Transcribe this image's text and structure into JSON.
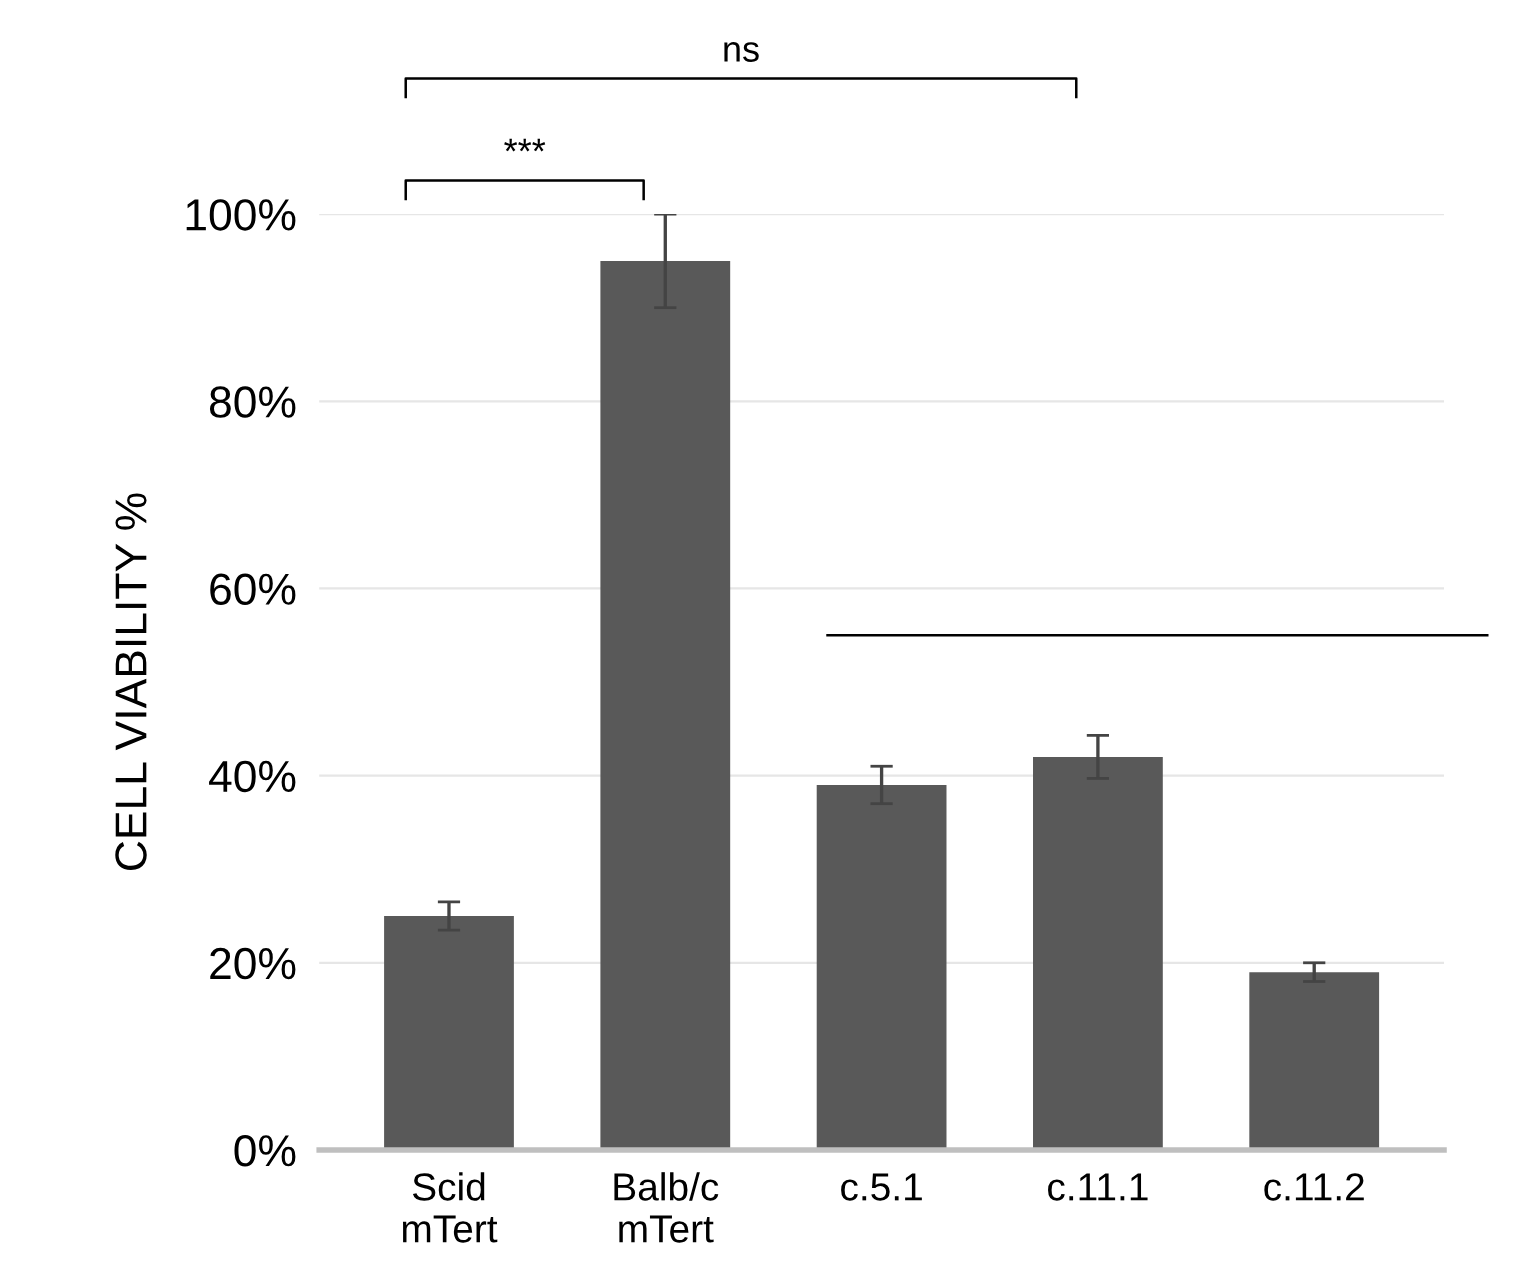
{
  "chart_data": {
    "type": "bar",
    "ylabel": "CELL VIABILITY %",
    "categories": [
      "Scid\nmTert",
      "Balb/c\nmTert",
      "c.5.1",
      "c.11.1",
      "c.11.2"
    ],
    "values": [
      25,
      95,
      39,
      42,
      19
    ],
    "errors": [
      1.5,
      5,
      2,
      2.3,
      1
    ],
    "color": "#595959",
    "ylim": [
      0,
      100
    ],
    "yticks": [
      {
        "value": 0,
        "label": "0%"
      },
      {
        "value": 20,
        "label": "20%"
      },
      {
        "value": 40,
        "label": "40%"
      },
      {
        "value": 60,
        "label": "60%"
      },
      {
        "value": 80,
        "label": "80%"
      },
      {
        "value": 100,
        "label": "100%"
      }
    ],
    "grid": "y",
    "ref_lines": [
      {
        "axis": "y",
        "value": 55,
        "color": "#000000"
      }
    ],
    "annotations": [
      "***",
      "ns"
    ]
  }
}
